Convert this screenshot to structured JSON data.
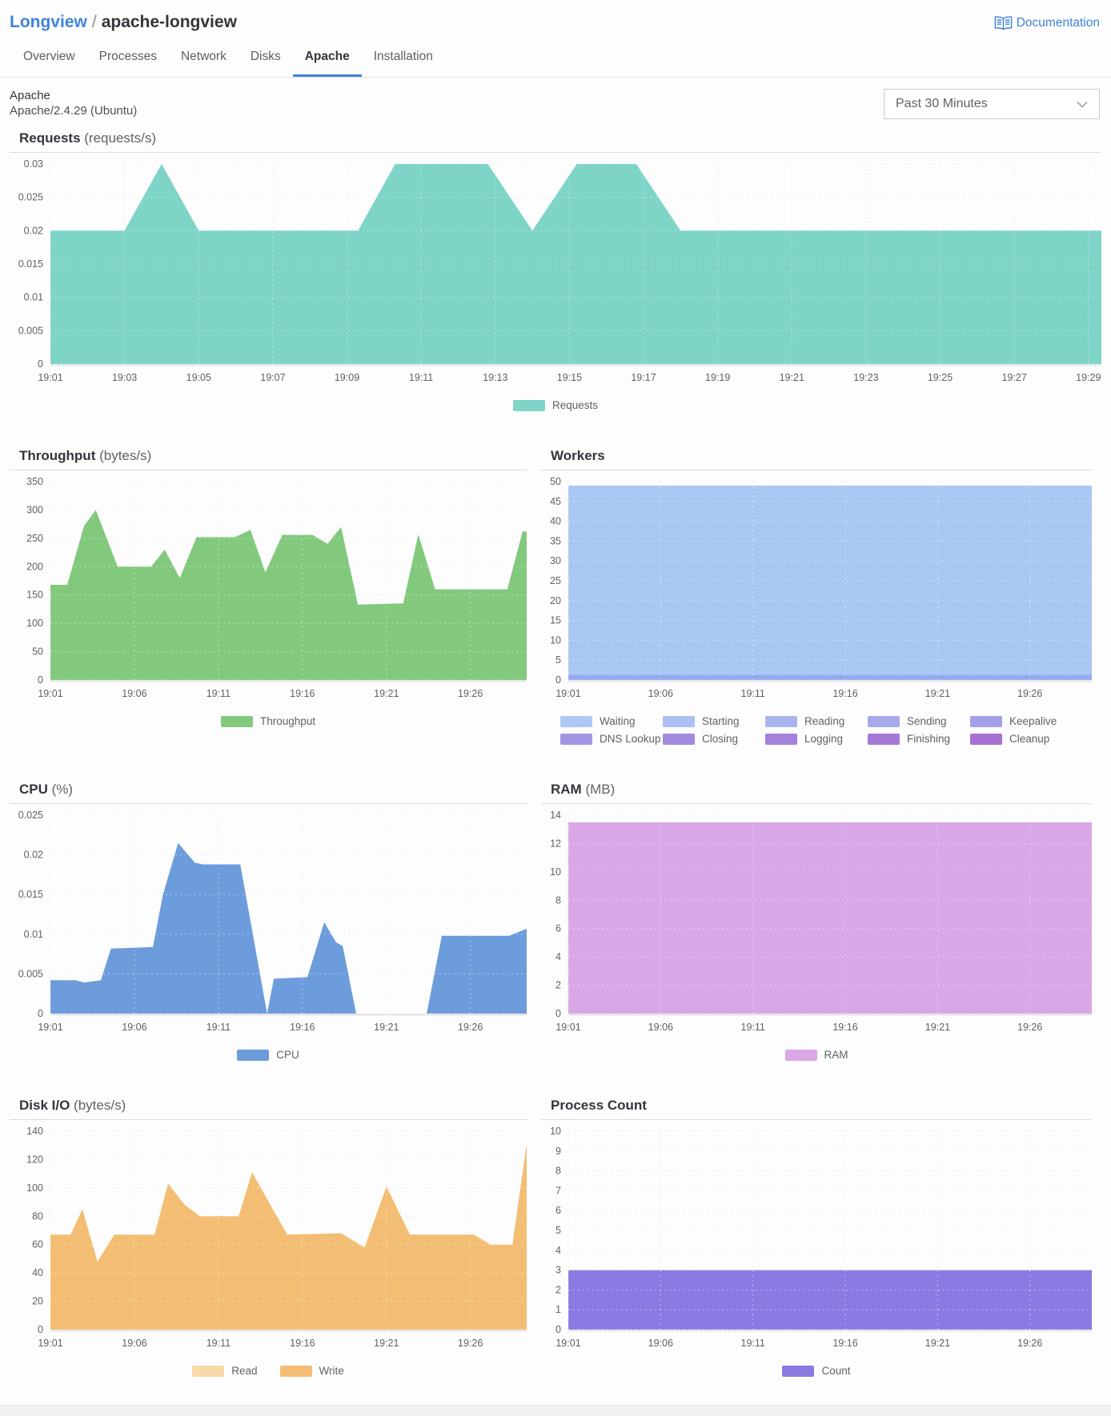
{
  "header": {
    "breadcrumb": {
      "parent": "Longview",
      "separator": "/",
      "current": "apache-longview"
    },
    "documentation_label": "Documentation",
    "tabs": [
      {
        "label": "Overview",
        "active": false
      },
      {
        "label": "Processes",
        "active": false
      },
      {
        "label": "Network",
        "active": false
      },
      {
        "label": "Disks",
        "active": false
      },
      {
        "label": "Apache",
        "active": true
      },
      {
        "label": "Installation",
        "active": false
      }
    ]
  },
  "subheader": {
    "title": "Apache",
    "subtitle": "Apache/2.4.29 (Ubuntu)",
    "time_range": "Past 30 Minutes"
  },
  "colors": {
    "accent_blue": "#4183d7",
    "requests_teal": "#7ed4c7",
    "throughput_green": "#82c97e",
    "workers_blue": "#aac7f3",
    "cpu_blue": "#6c9cdb",
    "ram_purple": "#d9a6e6",
    "disk_read_orange": "#f8d9a8",
    "disk_write_orange": "#f3be74",
    "count_purple": "#8a7be3"
  },
  "chart_data": [
    {
      "type": "area",
      "name": "requests",
      "title": "Requests",
      "unit": "(requests/s)",
      "xmin": 1,
      "xmax": 29.35,
      "ymax": 0.03,
      "yticks": [
        0,
        0.005,
        0.01,
        0.015,
        0.02,
        0.025,
        0.03
      ],
      "xticks": [
        [
          1,
          "19:01"
        ],
        [
          3,
          "19:03"
        ],
        [
          5,
          "19:05"
        ],
        [
          7,
          "19:07"
        ],
        [
          9,
          "19:09"
        ],
        [
          11,
          "19:11"
        ],
        [
          13,
          "19:13"
        ],
        [
          15,
          "19:15"
        ],
        [
          17,
          "19:17"
        ],
        [
          19,
          "19:19"
        ],
        [
          21,
          "19:21"
        ],
        [
          23,
          "19:23"
        ],
        [
          25,
          "19:25"
        ],
        [
          27,
          "19:27"
        ],
        [
          29,
          "19:29"
        ]
      ],
      "series": [
        {
          "name": "Requests",
          "color": "#7ed4c7",
          "points": [
            [
              1,
              0.02
            ],
            [
              3,
              0.02
            ],
            [
              4,
              0.03
            ],
            [
              5,
              0.02
            ],
            [
              9.3,
              0.02
            ],
            [
              10.3,
              0.03
            ],
            [
              12.8,
              0.03
            ],
            [
              14,
              0.02
            ],
            [
              15.2,
              0.03
            ],
            [
              16.8,
              0.03
            ],
            [
              18,
              0.02
            ],
            [
              29.35,
              0.02
            ]
          ]
        }
      ],
      "legend": [
        {
          "label": "Requests",
          "color": "#7ed4c7"
        }
      ],
      "legend_wrap": false
    },
    {
      "type": "area",
      "name": "throughput",
      "title": "Throughput",
      "unit": "(bytes/s)",
      "xmin": 1,
      "xmax": 29.35,
      "ymax": 350,
      "yticks": [
        0,
        50,
        100,
        150,
        200,
        250,
        300,
        350
      ],
      "xticks": [
        [
          1,
          "19:01"
        ],
        [
          6,
          "19:06"
        ],
        [
          11,
          "19:11"
        ],
        [
          16,
          "19:16"
        ],
        [
          21,
          "19:21"
        ],
        [
          26,
          "19:26"
        ]
      ],
      "series": [
        {
          "name": "Throughput",
          "color": "#82c97e",
          "points": [
            [
              1,
              168
            ],
            [
              2,
              168
            ],
            [
              3,
              272
            ],
            [
              3.7,
              300
            ],
            [
              5,
              200
            ],
            [
              7,
              200
            ],
            [
              7.8,
              230
            ],
            [
              8.7,
              180
            ],
            [
              9.7,
              252
            ],
            [
              12,
              252
            ],
            [
              12.9,
              265
            ],
            [
              13.8,
              190
            ],
            [
              14.8,
              256
            ],
            [
              16.6,
              256
            ],
            [
              17.5,
              240
            ],
            [
              18.3,
              270
            ],
            [
              19.3,
              133
            ],
            [
              22,
              135
            ],
            [
              22.9,
              257
            ],
            [
              23.9,
              160
            ],
            [
              28.2,
              160
            ],
            [
              29.1,
              262
            ],
            [
              29.35,
              262
            ]
          ]
        }
      ],
      "legend": [
        {
          "label": "Throughput",
          "color": "#82c97e"
        }
      ],
      "legend_wrap": false
    },
    {
      "type": "area",
      "name": "workers",
      "title": "Workers",
      "unit": "",
      "xmin": 1,
      "xmax": 29.35,
      "ymax": 50,
      "yticks": [
        0,
        5,
        10,
        15,
        20,
        25,
        30,
        35,
        40,
        45,
        50
      ],
      "xticks": [
        [
          1,
          "19:01"
        ],
        [
          6,
          "19:06"
        ],
        [
          11,
          "19:11"
        ],
        [
          16,
          "19:16"
        ],
        [
          21,
          "19:21"
        ],
        [
          26,
          "19:26"
        ]
      ],
      "series": [
        {
          "name": "Waiting",
          "color": "#aac7f3",
          "points": [
            [
              1,
              49
            ],
            [
              29.35,
              49
            ]
          ]
        },
        {
          "name": "Sending",
          "color": "#96a9ee",
          "points": [
            [
              1,
              1.3
            ],
            [
              29.35,
              1.3
            ]
          ]
        }
      ],
      "legend": [
        {
          "label": "Waiting",
          "color": "#afc9f5"
        },
        {
          "label": "Starting",
          "color": "#abbff2"
        },
        {
          "label": "Reading",
          "color": "#a9b4ef"
        },
        {
          "label": "Sending",
          "color": "#a6aaeb"
        },
        {
          "label": "Keepalive",
          "color": "#a4a0e7"
        },
        {
          "label": "DNS Lookup",
          "color": "#a295e3"
        },
        {
          "label": "Closing",
          "color": "#a18bdf"
        },
        {
          "label": "Logging",
          "color": "#a481da"
        },
        {
          "label": "Finishing",
          "color": "#a578d6"
        },
        {
          "label": "Cleanup",
          "color": "#a76fd1"
        }
      ],
      "legend_wrap": true
    },
    {
      "type": "area",
      "name": "cpu",
      "title": "CPU",
      "unit": "(%)",
      "xmin": 1,
      "xmax": 29.35,
      "ymax": 0.025,
      "yticks": [
        0,
        0.005,
        0.01,
        0.015,
        0.02,
        0.025
      ],
      "xticks": [
        [
          1,
          "19:01"
        ],
        [
          6,
          "19:06"
        ],
        [
          11,
          "19:11"
        ],
        [
          16,
          "19:16"
        ],
        [
          21,
          "19:21"
        ],
        [
          26,
          "19:26"
        ]
      ],
      "series": [
        {
          "name": "CPU",
          "color": "#6c9cdb",
          "points": [
            [
              1,
              0.0042
            ],
            [
              2.5,
              0.0042
            ],
            [
              3,
              0.0039
            ],
            [
              4,
              0.0042
            ],
            [
              4.6,
              0.0082
            ],
            [
              7.1,
              0.0084
            ],
            [
              7.7,
              0.015
            ],
            [
              8.6,
              0.0215
            ],
            [
              9.6,
              0.019
            ],
            [
              10.1,
              0.0188
            ],
            [
              12.3,
              0.0188
            ],
            [
              13.9,
              0
            ],
            [
              14.3,
              0.0044
            ],
            [
              16.3,
              0.0046
            ],
            [
              17.3,
              0.0115
            ],
            [
              18,
              0.009
            ],
            [
              18.4,
              0.0085
            ],
            [
              19.2,
              0
            ],
            [
              23.4,
              0
            ],
            [
              24.3,
              0.0098
            ],
            [
              28.3,
              0.0098
            ],
            [
              29.35,
              0.0107
            ]
          ]
        }
      ],
      "legend": [
        {
          "label": "CPU",
          "color": "#6c9cdb"
        }
      ],
      "legend_wrap": false
    },
    {
      "type": "area",
      "name": "ram",
      "title": "RAM",
      "unit": "(MB)",
      "xmin": 1,
      "xmax": 29.35,
      "ymax": 14,
      "yticks": [
        0,
        2,
        4,
        6,
        8,
        10,
        12,
        14
      ],
      "xticks": [
        [
          1,
          "19:01"
        ],
        [
          6,
          "19:06"
        ],
        [
          11,
          "19:11"
        ],
        [
          16,
          "19:16"
        ],
        [
          21,
          "19:21"
        ],
        [
          26,
          "19:26"
        ]
      ],
      "series": [
        {
          "name": "RAM",
          "color": "#d9a6e6",
          "points": [
            [
              1,
              13.5
            ],
            [
              29.35,
              13.5
            ]
          ]
        }
      ],
      "legend": [
        {
          "label": "RAM",
          "color": "#d9a6e6"
        }
      ],
      "legend_wrap": false
    },
    {
      "type": "area",
      "name": "disk-io",
      "title": "Disk I/O",
      "unit": "(bytes/s)",
      "xmin": 1,
      "xmax": 29.35,
      "ymax": 140,
      "yticks": [
        0,
        20,
        40,
        60,
        80,
        100,
        120,
        140
      ],
      "xticks": [
        [
          1,
          "19:01"
        ],
        [
          6,
          "19:06"
        ],
        [
          11,
          "19:11"
        ],
        [
          16,
          "19:16"
        ],
        [
          21,
          "19:21"
        ],
        [
          26,
          "19:26"
        ]
      ],
      "series": [
        {
          "name": "Read",
          "color": "#f8d9a8",
          "points": [
            [
              1,
              0.7
            ],
            [
              29.35,
              0.7
            ]
          ]
        },
        {
          "name": "Write",
          "color": "#f3be74",
          "points": [
            [
              1,
              67
            ],
            [
              2.2,
              67
            ],
            [
              2.9,
              85
            ],
            [
              3.8,
              48
            ],
            [
              4.8,
              67
            ],
            [
              7.2,
              67
            ],
            [
              8,
              103
            ],
            [
              9,
              88
            ],
            [
              9.9,
              80
            ],
            [
              12.2,
              80
            ],
            [
              13,
              111
            ],
            [
              14,
              90
            ],
            [
              15.1,
              67
            ],
            [
              18.3,
              68
            ],
            [
              19.7,
              58
            ],
            [
              21,
              101
            ],
            [
              22.4,
              67
            ],
            [
              26.2,
              67
            ],
            [
              27.2,
              60
            ],
            [
              28.5,
              60
            ],
            [
              29.35,
              131
            ]
          ]
        }
      ],
      "legend": [
        {
          "label": "Read",
          "color": "#f8d9a8"
        },
        {
          "label": "Write",
          "color": "#f3be74"
        }
      ],
      "legend_wrap": false
    },
    {
      "type": "area",
      "name": "process-count",
      "title": "Process Count",
      "unit": "",
      "xmin": 1,
      "xmax": 29.35,
      "ymax": 10,
      "yticks": [
        0,
        1,
        2,
        3,
        4,
        5,
        6,
        7,
        8,
        9,
        10
      ],
      "xticks": [
        [
          1,
          "19:01"
        ],
        [
          6,
          "19:06"
        ],
        [
          11,
          "19:11"
        ],
        [
          16,
          "19:16"
        ],
        [
          21,
          "19:21"
        ],
        [
          26,
          "19:26"
        ]
      ],
      "series": [
        {
          "name": "Count",
          "color": "#8a7be3",
          "points": [
            [
              1,
              3
            ],
            [
              29.35,
              3
            ]
          ]
        }
      ],
      "legend": [
        {
          "label": "Count",
          "color": "#8a7be3"
        }
      ],
      "legend_wrap": false
    }
  ]
}
